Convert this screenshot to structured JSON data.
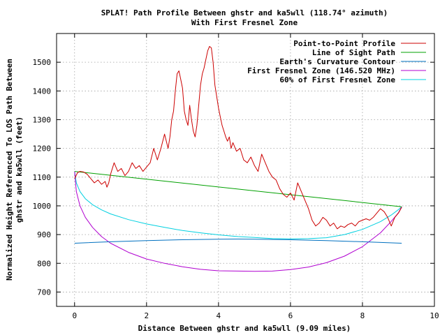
{
  "chart_data": {
    "type": "line",
    "title_line1": "SPLAT! Path Profile Between ghstr and ka5wll (118.74° azimuth)",
    "title_line2": "With First Fresnel Zone",
    "xlabel": "Distance Between ghstr and ka5wll (9.09 miles)",
    "ylabel_line1": "Normalized Height Referenced To LOS Path Between",
    "ylabel_line2": "ghstr and ka5wll (feet)",
    "xlim": [
      -0.5,
      10
    ],
    "ylim": [
      650,
      1600
    ],
    "x_ticks": [
      0,
      2,
      4,
      6,
      8,
      10
    ],
    "y_ticks": [
      700,
      800,
      900,
      1000,
      1100,
      1200,
      1300,
      1400,
      1500
    ],
    "grid": true,
    "legend_position": "top-right",
    "series": [
      {
        "name": "Point-to-Point Profile",
        "color": "#cc0000",
        "x": [
          0,
          0.08,
          0.15,
          0.25,
          0.35,
          0.45,
          0.55,
          0.65,
          0.75,
          0.85,
          0.9,
          0.95,
          1.0,
          1.1,
          1.2,
          1.3,
          1.4,
          1.5,
          1.6,
          1.7,
          1.8,
          1.9,
          2.0,
          2.1,
          2.2,
          2.3,
          2.4,
          2.5,
          2.6,
          2.65,
          2.7,
          2.75,
          2.8,
          2.85,
          2.9,
          2.95,
          3.0,
          3.05,
          3.1,
          3.15,
          3.2,
          3.25,
          3.3,
          3.35,
          3.4,
          3.45,
          3.5,
          3.55,
          3.6,
          3.65,
          3.7,
          3.75,
          3.8,
          3.85,
          3.9,
          3.95,
          4.0,
          4.05,
          4.1,
          4.15,
          4.2,
          4.25,
          4.3,
          4.35,
          4.4,
          4.5,
          4.6,
          4.7,
          4.8,
          4.9,
          5.0,
          5.1,
          5.2,
          5.3,
          5.4,
          5.5,
          5.6,
          5.7,
          5.8,
          5.9,
          6.0,
          6.1,
          6.2,
          6.3,
          6.4,
          6.5,
          6.6,
          6.7,
          6.8,
          6.9,
          7.0,
          7.1,
          7.2,
          7.3,
          7.4,
          7.5,
          7.6,
          7.7,
          7.8,
          7.9,
          8.0,
          8.1,
          8.2,
          8.3,
          8.4,
          8.5,
          8.6,
          8.7,
          8.8,
          8.9,
          9.0,
          9.09
        ],
        "values": [
          1095,
          1115,
          1120,
          1118,
          1110,
          1095,
          1080,
          1090,
          1075,
          1085,
          1065,
          1080,
          1110,
          1150,
          1120,
          1130,
          1105,
          1120,
          1150,
          1130,
          1140,
          1120,
          1135,
          1150,
          1200,
          1160,
          1200,
          1250,
          1200,
          1240,
          1300,
          1330,
          1400,
          1460,
          1470,
          1440,
          1410,
          1330,
          1300,
          1280,
          1350,
          1300,
          1260,
          1240,
          1280,
          1350,
          1420,
          1460,
          1480,
          1510,
          1540,
          1555,
          1550,
          1500,
          1420,
          1380,
          1340,
          1310,
          1280,
          1260,
          1240,
          1225,
          1240,
          1200,
          1220,
          1190,
          1200,
          1160,
          1150,
          1170,
          1140,
          1120,
          1180,
          1150,
          1120,
          1100,
          1090,
          1060,
          1040,
          1030,
          1045,
          1020,
          1080,
          1050,
          1020,
          990,
          950,
          930,
          940,
          960,
          950,
          930,
          940,
          920,
          930,
          925,
          935,
          940,
          930,
          945,
          950,
          955,
          950,
          960,
          975,
          990,
          980,
          960,
          930,
          960,
          975,
          995
        ]
      },
      {
        "name": "Line of Sight Path",
        "color": "#00a000",
        "x": [
          0,
          9.09
        ],
        "values": [
          1120,
          997
        ]
      },
      {
        "name": "Earth's Curvature Contour",
        "color": "#0070c0",
        "x": [
          0,
          1,
          2,
          3,
          4,
          4.545,
          5,
          6,
          7,
          8,
          9.09
        ],
        "values": [
          870,
          875,
          879,
          882,
          884,
          884.5,
          884,
          882,
          879,
          875,
          870
        ]
      },
      {
        "name": "First Fresnel Zone (146.520 MHz)",
        "color": "#b000d0",
        "x": [
          0,
          0.05,
          0.15,
          0.3,
          0.5,
          0.75,
          1.0,
          1.5,
          2.0,
          2.5,
          3.0,
          3.5,
          4.0,
          4.545,
          5.0,
          5.5,
          6.0,
          6.5,
          7.0,
          7.5,
          8.0,
          8.5,
          8.8,
          9.0,
          9.09
        ],
        "values": [
          1120,
          1050,
          1000,
          960,
          925,
          893,
          870,
          838,
          815,
          800,
          788,
          779,
          774,
          773,
          772,
          773,
          778,
          787,
          802,
          825,
          858,
          906,
          946,
          976,
          997
        ]
      },
      {
        "name": "60% of First Fresnel Zone",
        "color": "#00d0e0",
        "x": [
          0,
          0.05,
          0.15,
          0.3,
          0.5,
          0.75,
          1.0,
          1.5,
          2.0,
          2.5,
          3.0,
          3.5,
          4.0,
          4.545,
          5.0,
          5.5,
          6.0,
          6.5,
          7.0,
          7.5,
          8.0,
          8.5,
          8.8,
          9.0,
          9.09
        ],
        "values": [
          1120,
          1080,
          1050,
          1025,
          1004,
          986,
          972,
          952,
          937,
          925,
          914,
          906,
          899,
          893,
          890,
          886,
          885,
          886,
          889,
          900,
          918,
          945,
          968,
          987,
          997
        ]
      }
    ]
  }
}
